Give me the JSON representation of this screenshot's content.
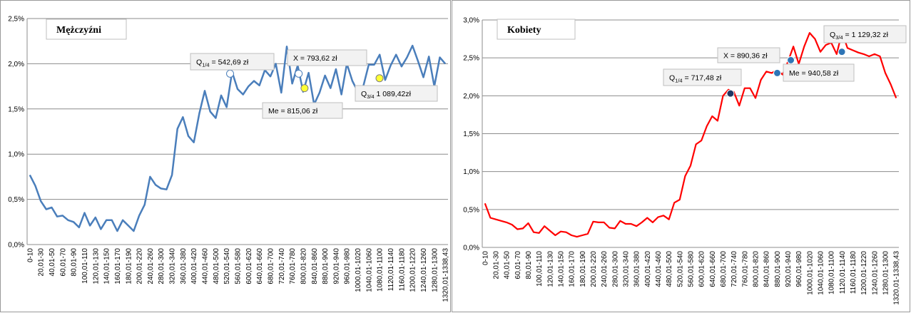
{
  "chart_data": [
    {
      "type": "line",
      "title": "Mężczyźni",
      "categories": [
        "0-10",
        null,
        "20,01-30",
        null,
        "40,01-50",
        null,
        "60,01-70",
        null,
        "80,01-90",
        null,
        "100,01-110",
        null,
        "120,01-130",
        null,
        "140,01-150",
        null,
        "160,01-170",
        null,
        "180,01-190",
        null,
        "200,01-220",
        null,
        "240,01-260",
        null,
        "280,01-300",
        null,
        "320,01-340",
        null,
        "360,01-380",
        null,
        "400,01-420",
        null,
        "440,01-460",
        null,
        "480,01-500",
        null,
        "520,01-540",
        null,
        "560,01-580",
        null,
        "600,01-620",
        null,
        "640,01-660",
        null,
        "680,01-700",
        null,
        "720,01-740",
        null,
        "760,01-780",
        null,
        "800,01-820",
        null,
        "840,01-860",
        null,
        "880,01-900",
        null,
        "920,01-940",
        null,
        "960,01-980",
        null,
        "1000,01-1020",
        null,
        "1040,01-1060",
        null,
        "1080,01-1100",
        null,
        "1120,01-1140",
        null,
        "1160,01-1180",
        null,
        "1200,01-1220",
        null,
        "1240,01-1260",
        null,
        "1280,01-1300",
        null,
        "1320,01-1338,43"
      ],
      "series": [
        {
          "color": "#4a7ebb",
          "values": [
            0.77,
            0.65,
            0.48,
            0.39,
            0.41,
            0.31,
            0.32,
            0.27,
            0.25,
            0.19,
            0.35,
            0.21,
            0.3,
            0.17,
            0.27,
            0.27,
            0.15,
            0.27,
            0.21,
            0.15,
            0.32,
            0.44,
            0.75,
            0.66,
            0.62,
            0.61,
            0.77,
            1.28,
            1.41,
            1.2,
            1.13,
            1.45,
            1.7,
            1.47,
            1.4,
            1.65,
            1.52,
            1.91,
            1.72,
            1.66,
            1.75,
            1.81,
            1.76,
            1.93,
            1.86,
            2.0,
            1.68,
            2.19,
            1.78,
            1.98,
            1.69,
            1.9,
            1.55,
            1.68,
            1.87,
            1.73,
            1.94,
            1.66,
            2.0,
            1.81,
            1.69,
            1.75,
            1.99,
            1.99,
            2.1,
            1.82,
            1.98,
            2.1,
            1.97,
            2.07,
            2.2,
            2.03,
            1.85,
            2.08,
            1.75,
            2.07,
            2.0
          ]
        }
      ],
      "ylim": [
        0,
        2.5
      ],
      "yticks": [
        {
          "value": 0,
          "label": "0,0%"
        },
        {
          "value": 0.5,
          "label": "0,5%"
        },
        {
          "value": 1,
          "label": "1,0%"
        },
        {
          "value": 1.5,
          "label": "1,5%"
        },
        {
          "value": 2,
          "label": "2,0%"
        },
        {
          "value": 2.5,
          "label": "2,5%"
        }
      ],
      "grid": true,
      "annotations": [
        {
          "label": "Q",
          "sub": "1/4",
          "text": " = 542,69 zł",
          "x": 542.69,
          "y": 1.89,
          "color": "#ffffff"
        },
        {
          "text": "X = 793,62 zł",
          "x": 793.62,
          "y": 1.89,
          "color": "#ffffff"
        },
        {
          "text": "Me = 815,06 zł",
          "x": 815.06,
          "y": 1.73,
          "color": "#ffff33"
        },
        {
          "label": "Q",
          "sub": "3/4",
          "text": " 1 089,42zł",
          "x": 1089.42,
          "y": 1.84,
          "color": "#ffff33"
        }
      ]
    },
    {
      "type": "line",
      "title": "Kobiety",
      "categories": [
        "0-10",
        null,
        "20,01-30",
        null,
        "40,01-50",
        null,
        "60,01-70",
        null,
        "80,01-90",
        null,
        "100,01-110",
        null,
        "120,01-130",
        null,
        "140,01-150",
        null,
        "160,01-170",
        null,
        "180,01-190",
        null,
        "200,01-220",
        null,
        "240,01-260",
        null,
        "280,01-300",
        null,
        "320,01-340",
        null,
        "360,01-380",
        null,
        "400,01-420",
        null,
        "440,01-460",
        null,
        "480,01-500",
        null,
        "520,01-540",
        null,
        "560,01-580",
        null,
        "600,01-620",
        null,
        "640,01-660",
        null,
        "680,01-700",
        null,
        "720,01-740",
        null,
        "760,01-780",
        null,
        "800,01-820",
        null,
        "840,01-860",
        null,
        "880,01-900",
        null,
        "920,01-940",
        null,
        "960,01-980",
        null,
        "1000,01-1020",
        null,
        "1040,01-1060",
        null,
        "1080,01-1100",
        null,
        "1120,01-1140",
        null,
        "1160,01-1180",
        null,
        "1200,01-1220",
        null,
        "1240,01-1260",
        null,
        "1280,01-1300",
        null,
        "1320,01-1338,43"
      ],
      "series": [
        {
          "color": "#ff0000",
          "values": [
            0.58,
            0.39,
            0.37,
            0.35,
            0.33,
            0.3,
            0.24,
            0.25,
            0.32,
            0.2,
            0.19,
            0.28,
            0.22,
            0.16,
            0.21,
            0.2,
            0.16,
            0.14,
            0.16,
            0.18,
            0.34,
            0.33,
            0.33,
            0.26,
            0.25,
            0.35,
            0.31,
            0.31,
            0.28,
            0.33,
            0.39,
            0.33,
            0.4,
            0.42,
            0.37,
            0.59,
            0.63,
            0.94,
            1.08,
            1.36,
            1.41,
            1.6,
            1.73,
            1.67,
            2.0,
            2.08,
            2.05,
            1.87,
            2.1,
            2.1,
            1.97,
            2.21,
            2.32,
            2.3,
            2.34,
            2.28,
            2.45,
            2.65,
            2.42,
            2.65,
            2.83,
            2.75,
            2.58,
            2.67,
            2.7,
            2.55,
            2.84,
            2.63,
            2.6,
            2.57,
            2.55,
            2.52,
            2.55,
            2.52,
            2.3,
            2.15,
            1.97
          ]
        }
      ],
      "ylim": [
        0,
        3
      ],
      "yticks": [
        {
          "value": 0,
          "label": "0,0%"
        },
        {
          "value": 0.5,
          "label": "0,5%"
        },
        {
          "value": 1,
          "label": "1,0%"
        },
        {
          "value": 1.5,
          "label": "1,5%"
        },
        {
          "value": 2,
          "label": "2,0%"
        },
        {
          "value": 2.5,
          "label": "2,5%"
        },
        {
          "value": 3,
          "label": "3,0%"
        }
      ],
      "grid": true,
      "annotations": [
        {
          "label": "Q",
          "sub": "1/4",
          "text": " = 717,48 zł",
          "x": 717.48,
          "y": 2.03,
          "color": "#1f3864"
        },
        {
          "text": "X = 890,36 zł",
          "x": 890.36,
          "y": 2.3,
          "color": "#2e75b6"
        },
        {
          "text": "Me = 940,58 zł",
          "x": 940.58,
          "y": 2.47,
          "color": "#2e75b6"
        },
        {
          "label": "Q",
          "sub": "3/4",
          "text": " = 1 129,32 zł",
          "x": 1129.32,
          "y": 2.58,
          "color": "#2e75b6"
        }
      ]
    }
  ]
}
